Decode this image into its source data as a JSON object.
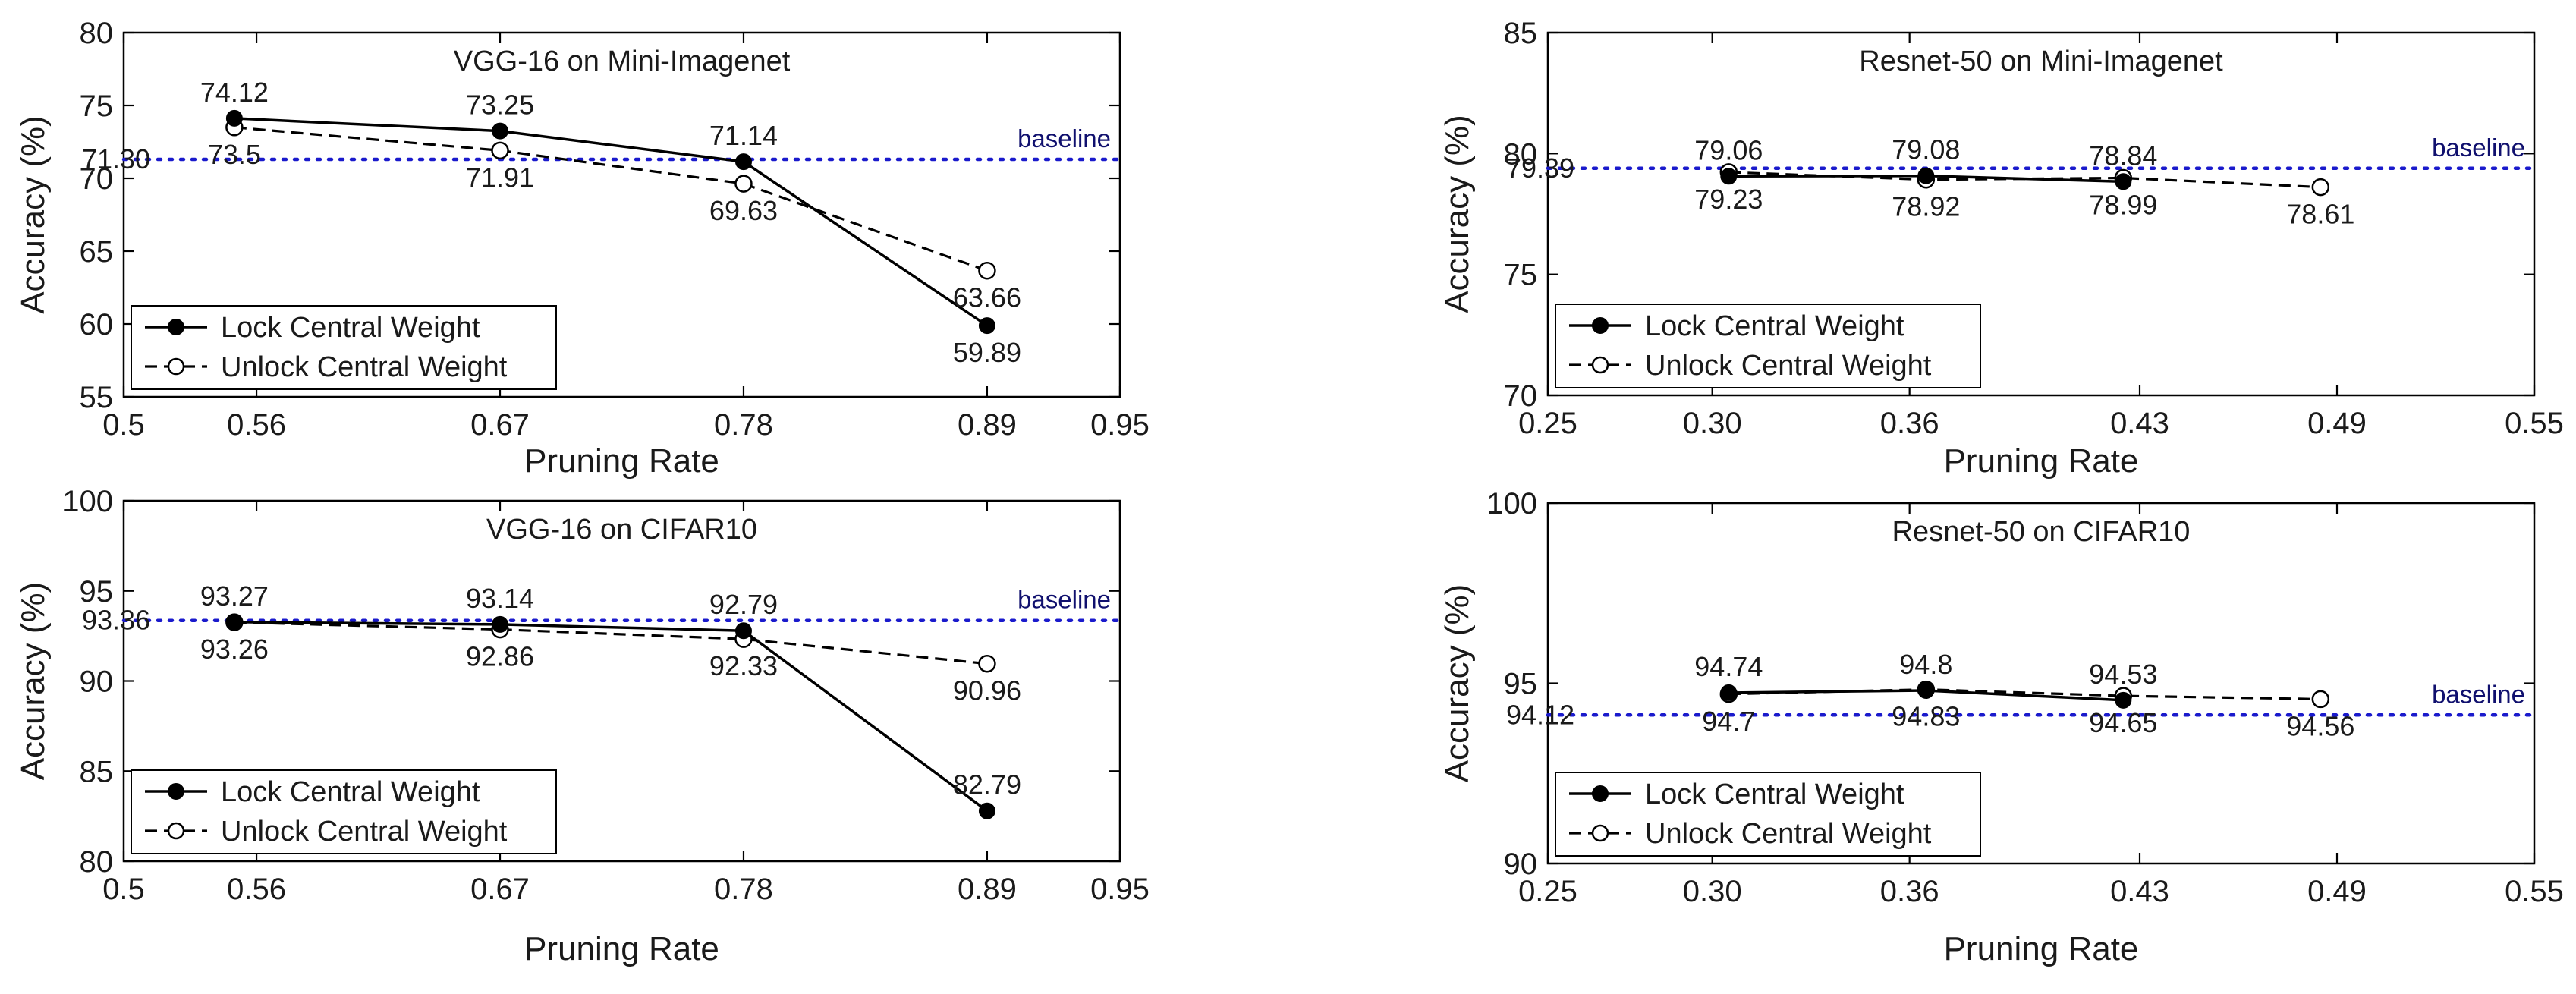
{
  "chart_data": [
    {
      "type": "line",
      "title": "VGG-16 on Mini-Imagenet",
      "xlabel": "Pruning Rate",
      "ylabel": "Accuracy (%)",
      "xlim": [
        0.5,
        0.95
      ],
      "ylim": [
        55,
        80
      ],
      "xticks": [
        0.5,
        0.56,
        0.67,
        0.78,
        0.89,
        0.95
      ],
      "xtick_labels": [
        "0.5",
        "0.56",
        "0.67",
        "0.78",
        "0.89",
        "0.95"
      ],
      "yticks": [
        55,
        60,
        65,
        70,
        75,
        80
      ],
      "ytick_labels": [
        "55",
        "60",
        "65",
        "70",
        "75",
        "80"
      ],
      "grid": false,
      "legend_position": "bottom-left",
      "baseline": {
        "value": 71.3,
        "value_label": "71.30",
        "label": "baseline"
      },
      "series": [
        {
          "name": "Lock Central Weight",
          "style": "solid-filled",
          "x": [
            0.55,
            0.67,
            0.78,
            0.89
          ],
          "y": [
            74.12,
            73.25,
            71.14,
            59.89
          ],
          "labels": [
            "74.12",
            "73.25",
            "71.14",
            "59.89"
          ],
          "label_positions": [
            "above",
            "above",
            "above",
            "below"
          ]
        },
        {
          "name": "Unlock Central Weight",
          "style": "dashed-open",
          "x": [
            0.55,
            0.67,
            0.78,
            0.89
          ],
          "y": [
            73.5,
            71.91,
            69.63,
            63.66
          ],
          "labels": [
            "73.5",
            "71.91",
            "69.63",
            "63.66"
          ],
          "label_positions": [
            "below",
            "below",
            "below",
            "below"
          ]
        }
      ]
    },
    {
      "type": "line",
      "title": "Resnet-50 on Mini-Imagenet",
      "xlabel": "Pruning Rate",
      "ylabel": "Accuracy (%)",
      "xlim": [
        0.25,
        0.55
      ],
      "ylim": [
        70,
        85
      ],
      "xticks": [
        0.25,
        0.3,
        0.36,
        0.43,
        0.49,
        0.55
      ],
      "xtick_labels": [
        "0.25",
        "0.30",
        "0.36",
        "0.43",
        "0.49",
        "0.55"
      ],
      "yticks": [
        70,
        75,
        80,
        85
      ],
      "ytick_labels": [
        "70",
        "75",
        "80",
        "85"
      ],
      "grid": false,
      "legend_position": "bottom-left",
      "baseline": {
        "value": 79.39,
        "value_label": "79.39",
        "label": "baseline"
      },
      "series": [
        {
          "name": "Lock Central Weight",
          "style": "solid-filled",
          "x": [
            0.305,
            0.365,
            0.425
          ],
          "y": [
            79.06,
            79.08,
            78.84
          ],
          "labels": [
            "79.06",
            "79.08",
            "78.84"
          ],
          "label_positions": [
            "above",
            "above",
            "above"
          ]
        },
        {
          "name": "Unlock Central Weight",
          "style": "dashed-open",
          "x": [
            0.305,
            0.365,
            0.425,
            0.485
          ],
          "y": [
            79.23,
            78.92,
            78.99,
            78.61
          ],
          "labels": [
            "79.23",
            "78.92",
            "78.99",
            "78.61"
          ],
          "label_positions": [
            "below",
            "below",
            "below",
            "below"
          ]
        }
      ]
    },
    {
      "type": "line",
      "title": "VGG-16 on CIFAR10",
      "xlabel": "Pruning Rate",
      "ylabel": "Accuracy (%)",
      "xlim": [
        0.5,
        0.95
      ],
      "ylim": [
        80,
        100
      ],
      "xticks": [
        0.5,
        0.56,
        0.67,
        0.78,
        0.89,
        0.95
      ],
      "xtick_labels": [
        "0.5",
        "0.56",
        "0.67",
        "0.78",
        "0.89",
        "0.95"
      ],
      "yticks": [
        80,
        85,
        90,
        95,
        100
      ],
      "ytick_labels": [
        "80",
        "85",
        "90",
        "95",
        "100"
      ],
      "grid": false,
      "legend_position": "bottom-left",
      "baseline": {
        "value": 93.36,
        "value_label": "93.36",
        "label": "baseline"
      },
      "series": [
        {
          "name": "Lock Central Weight",
          "style": "solid-filled",
          "x": [
            0.55,
            0.67,
            0.78,
            0.89
          ],
          "y": [
            93.27,
            93.14,
            92.79,
            82.79
          ],
          "labels": [
            "93.27",
            "93.14",
            "92.79",
            "82.79"
          ],
          "label_positions": [
            "above",
            "above",
            "above",
            "above"
          ]
        },
        {
          "name": "Unlock Central Weight",
          "style": "dashed-open",
          "x": [
            0.55,
            0.67,
            0.78,
            0.89
          ],
          "y": [
            93.26,
            92.86,
            92.33,
            90.96
          ],
          "labels": [
            "93.26",
            "92.86",
            "92.33",
            "90.96"
          ],
          "label_positions": [
            "below",
            "below",
            "below",
            "below"
          ]
        }
      ]
    },
    {
      "type": "line",
      "title": "Resnet-50 on CIFAR10",
      "xlabel": "Pruning Rate",
      "ylabel": "Accuracy (%)",
      "xlim": [
        0.25,
        0.55
      ],
      "ylim": [
        90,
        100
      ],
      "xticks": [
        0.25,
        0.3,
        0.36,
        0.43,
        0.49,
        0.55
      ],
      "xtick_labels": [
        "0.25",
        "0.30",
        "0.36",
        "0.43",
        "0.49",
        "0.55"
      ],
      "yticks": [
        90,
        95,
        100
      ],
      "ytick_labels": [
        "90",
        "95",
        "100"
      ],
      "grid": false,
      "legend_position": "bottom-left",
      "baseline": {
        "value": 94.12,
        "value_label": "94.12",
        "label": "baseline"
      },
      "series": [
        {
          "name": "Lock Central Weight",
          "style": "solid-filled",
          "x": [
            0.305,
            0.365,
            0.425
          ],
          "y": [
            94.74,
            94.8,
            94.53
          ],
          "labels": [
            "94.74",
            "94.8",
            "94.53"
          ],
          "label_positions": [
            "above",
            "above",
            "above"
          ]
        },
        {
          "name": "Unlock Central Weight",
          "style": "dashed-open",
          "x": [
            0.305,
            0.365,
            0.425,
            0.485
          ],
          "y": [
            94.7,
            94.83,
            94.65,
            94.56
          ],
          "labels": [
            "94.7",
            "94.83",
            "94.65",
            "94.56"
          ],
          "label_positions": [
            "below",
            "below",
            "below",
            "below"
          ]
        }
      ]
    }
  ]
}
